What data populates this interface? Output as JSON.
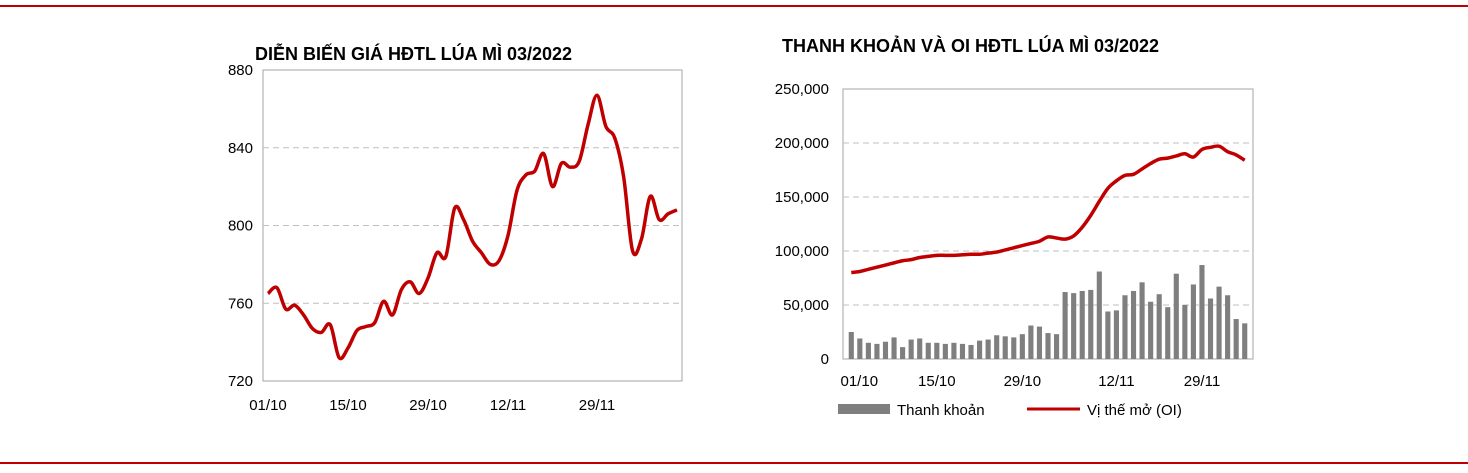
{
  "colors": {
    "accent": "#c00000",
    "bar": "#7f7f7f",
    "grid": "#bfbfbf",
    "axis": "#a6a6a6"
  },
  "chart_data": [
    {
      "type": "line",
      "title": "DIỄN BIẾN GIÁ HĐTL LÚA MÌ 03/2022",
      "ylim": [
        720,
        880
      ],
      "yticks": [
        "880",
        "840",
        "800",
        "760",
        "720"
      ],
      "yticks_values": [
        880,
        840,
        800,
        760,
        720
      ],
      "xticks": [
        "01/10",
        "15/10",
        "29/10",
        "12/11",
        "29/11"
      ],
      "grid": "horizontal dashed",
      "series": [
        {
          "values": [
            765,
            768,
            757,
            759,
            754,
            747,
            745,
            749,
            732,
            737,
            746,
            748,
            750,
            761,
            754,
            767,
            771,
            765,
            773,
            786,
            784,
            809,
            803,
            792,
            786,
            780,
            782,
            795,
            818,
            826,
            828,
            837,
            820,
            832,
            830,
            833,
            852,
            867,
            851,
            845,
            825,
            787,
            793,
            815,
            803,
            806,
            808
          ]
        }
      ]
    },
    {
      "type": "bar",
      "title": "THANH KHOẢN VÀ OI HĐTL LÚA MÌ  03/2022",
      "ylim": [
        0,
        250000
      ],
      "yticks": [
        "250,000",
        "200,000",
        "150,000",
        "100,000",
        "50,000",
        "0"
      ],
      "yticks_values": [
        250000,
        200000,
        150000,
        100000,
        50000,
        0
      ],
      "xticks": [
        "01/10",
        "15/10",
        "29/10",
        "12/11",
        "29/11"
      ],
      "grid": "horizontal dashed",
      "legend": "bottom",
      "series": [
        {
          "name": "Thanh khoản",
          "type": "bar",
          "values": [
            25000,
            19000,
            15000,
            14000,
            16000,
            20000,
            11000,
            18000,
            19000,
            15000,
            15000,
            14000,
            15000,
            14000,
            13000,
            17000,
            18000,
            22000,
            21000,
            20000,
            23000,
            31000,
            30000,
            24000,
            23000,
            62000,
            61000,
            63000,
            64000,
            81000,
            44000,
            45000,
            59000,
            63000,
            71000,
            53000,
            60000,
            48000,
            79000,
            50000,
            69000,
            87000,
            56000,
            67000,
            59000,
            37000,
            33000
          ]
        },
        {
          "name": "Vị thế mở (OI)",
          "type": "line",
          "values": [
            80000,
            81000,
            83000,
            85000,
            87000,
            89000,
            91000,
            92000,
            94000,
            95000,
            96000,
            96000,
            96000,
            96500,
            97000,
            97000,
            98000,
            99000,
            101000,
            103000,
            105000,
            107000,
            109000,
            113000,
            112000,
            111000,
            114000,
            122000,
            133000,
            146000,
            158000,
            165000,
            170000,
            171000,
            176000,
            181000,
            185000,
            186000,
            188000,
            190000,
            187000,
            194000,
            196000,
            197000,
            192000,
            189000,
            184000
          ]
        }
      ]
    }
  ]
}
